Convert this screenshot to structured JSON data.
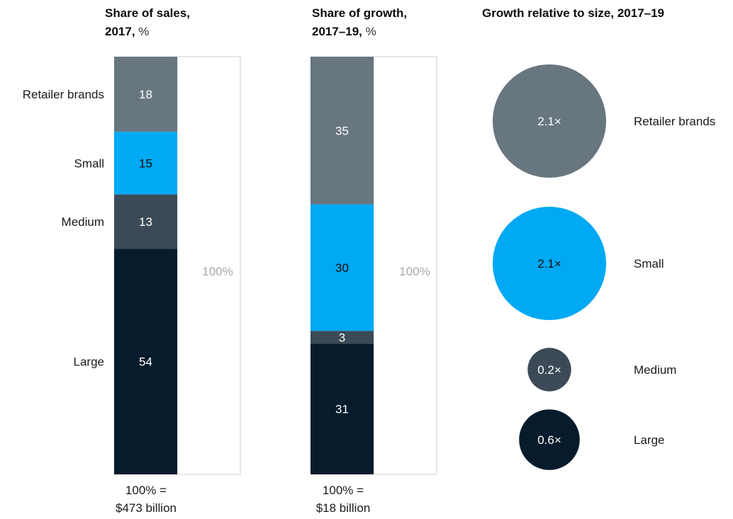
{
  "chart_data": [
    {
      "type": "bar",
      "subtype": "stacked-100",
      "title_bold": "Share of sales,",
      "title_bold_2": "2017,",
      "title_unit": "%",
      "categories": [
        "Retailer brands",
        "Small",
        "Medium",
        "Large"
      ],
      "values": [
        18,
        15,
        13,
        54
      ],
      "total_label": "100%",
      "footnote_line1": "100% =",
      "footnote_line2": "$473 billion"
    },
    {
      "type": "bar",
      "subtype": "stacked-100",
      "title_bold": "Share of growth,",
      "title_bold_2": "2017–19,",
      "title_unit": "%",
      "categories": [
        "Retailer brands",
        "Small",
        "Medium",
        "Large"
      ],
      "values": [
        35,
        30,
        3,
        31
      ],
      "total_label": "100%",
      "footnote_line1": "100% =",
      "footnote_line2": "$18 billion"
    },
    {
      "type": "bubble",
      "title_bold": "Growth relative to size, 2017–19",
      "categories": [
        "Retailer brands",
        "Small",
        "Medium",
        "Large"
      ],
      "values": [
        2.1,
        2.1,
        0.2,
        0.6
      ],
      "value_labels": [
        "2.1×",
        "2.1×",
        "0.2×",
        "0.6×"
      ]
    }
  ],
  "colors": {
    "Retailer brands": "#68767f",
    "Small": "#00a9f4",
    "Medium": "#3c4a57",
    "Large": "#061c2c",
    "outline": "#cfcfcf"
  },
  "text_colors": {
    "Retailer brands": "#ffffff",
    "Small": "#0b0b0b",
    "Medium": "#ffffff",
    "Large": "#ffffff"
  }
}
